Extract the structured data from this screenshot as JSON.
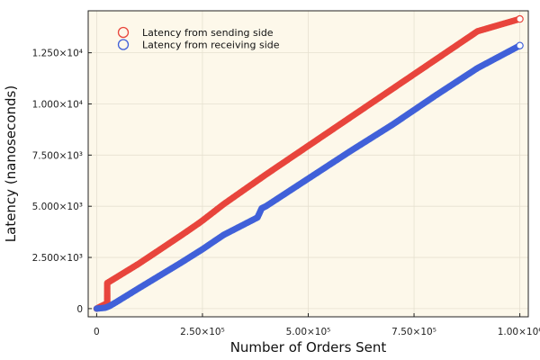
{
  "chart_data": {
    "type": "scatter",
    "xlabel": "Number of Orders Sent",
    "ylabel": "Latency (nanoseconds)",
    "xlim": [
      -20000,
      1020000
    ],
    "ylim": [
      -400,
      14550
    ],
    "grid": true,
    "legend_position": "top-left",
    "background": "#fdf8ea",
    "x_ticks": [
      {
        "value": 0,
        "label": "0"
      },
      {
        "value": 250000,
        "label": "2.50×10⁵"
      },
      {
        "value": 500000,
        "label": "5.00×10⁵"
      },
      {
        "value": 750000,
        "label": "7.50×10⁵"
      },
      {
        "value": 1000000,
        "label": "1.00×10⁶"
      }
    ],
    "y_ticks": [
      {
        "value": 0,
        "label": "0"
      },
      {
        "value": 2500,
        "label": "2.500×10³"
      },
      {
        "value": 5000,
        "label": "5.000×10³"
      },
      {
        "value": 7500,
        "label": "7.500×10³"
      },
      {
        "value": 10000,
        "label": "1.000×10⁴"
      },
      {
        "value": 12500,
        "label": "1.250×10⁴"
      }
    ],
    "series": [
      {
        "name": "Latency from sending side",
        "color": "#e8453c",
        "points": [
          [
            0,
            0
          ],
          [
            10000,
            110
          ],
          [
            20000,
            210
          ],
          [
            25000,
            250
          ],
          [
            25000,
            1250
          ],
          [
            100000,
            2200
          ],
          [
            200000,
            3580
          ],
          [
            240000,
            4150
          ],
          [
            250000,
            4300
          ],
          [
            300000,
            5100
          ],
          [
            400000,
            6550
          ],
          [
            500000,
            7950
          ],
          [
            600000,
            9350
          ],
          [
            700000,
            10750
          ],
          [
            800000,
            12150
          ],
          [
            900000,
            13550
          ],
          [
            1000000,
            14150
          ]
        ]
      },
      {
        "name": "Latency from receiving side",
        "color": "#4060d8",
        "points": [
          [
            0,
            0
          ],
          [
            20000,
            40
          ],
          [
            30000,
            120
          ],
          [
            45000,
            300
          ],
          [
            100000,
            1000
          ],
          [
            200000,
            2250
          ],
          [
            250000,
            2900
          ],
          [
            300000,
            3600
          ],
          [
            380000,
            4450
          ],
          [
            390000,
            4900
          ],
          [
            400000,
            5000
          ],
          [
            500000,
            6350
          ],
          [
            600000,
            7700
          ],
          [
            700000,
            9000
          ],
          [
            800000,
            10400
          ],
          [
            900000,
            11750
          ],
          [
            1000000,
            12850
          ]
        ]
      }
    ]
  }
}
